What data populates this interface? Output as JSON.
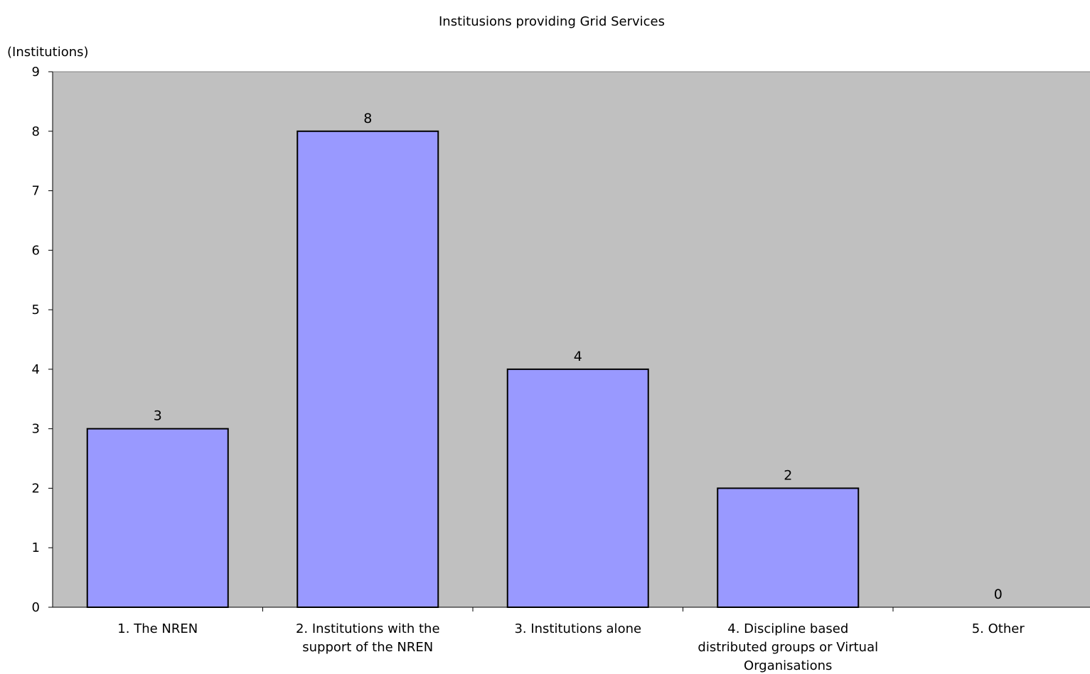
{
  "chart_data": {
    "type": "bar",
    "title": "Institusions providing Grid Services",
    "xlabel": "",
    "ylabel": "(Institutions)",
    "ylim": [
      0,
      9
    ],
    "yticks": [
      "0",
      "1",
      "2",
      "3",
      "4",
      "5",
      "6",
      "7",
      "8",
      "9"
    ],
    "categories": [
      [
        "1. The NREN"
      ],
      [
        "2. Institutions with the",
        "support of the NREN"
      ],
      [
        "3. Institutions alone"
      ],
      [
        "4. Discipline based",
        "distributed groups or Virtual",
        "Organisations"
      ],
      [
        "5. Other"
      ]
    ],
    "values": [
      3,
      8,
      4,
      2,
      0
    ],
    "data_labels": [
      "3",
      "8",
      "4",
      "2",
      "0"
    ],
    "grid": false,
    "legend": "none",
    "colors": {
      "plot_background": "#c0c0c0",
      "bar_fill": "#9999ff",
      "bar_stroke": "#000000",
      "axis": "#000000"
    }
  }
}
